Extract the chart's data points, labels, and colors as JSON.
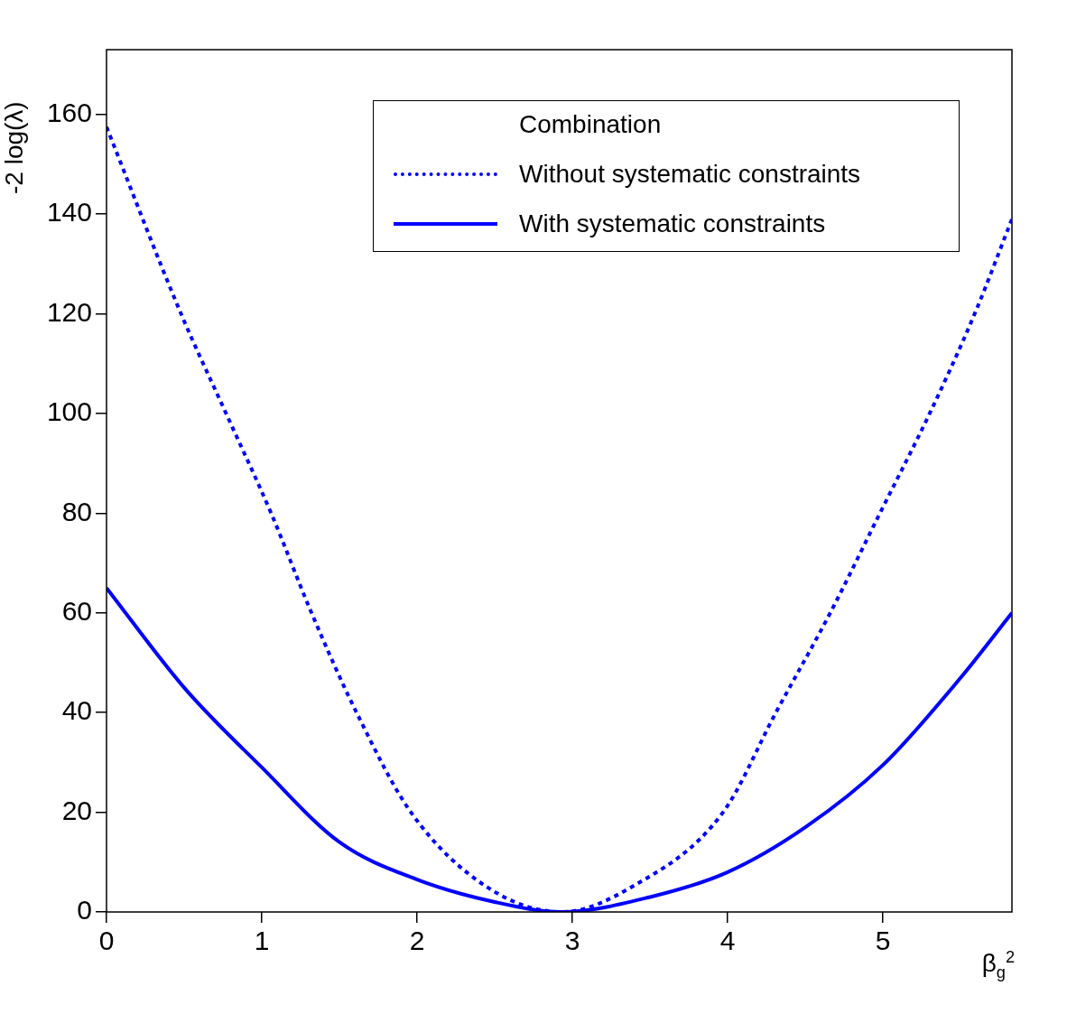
{
  "chart_data": {
    "type": "line",
    "xlabel": "β$_{g}$$^{2}$",
    "ylabel": "-2 log(λ)",
    "legend_title": "Combination",
    "legend": "top right",
    "grid": false,
    "marker": "none",
    "xlim": [
      0,
      5.83
    ],
    "xticks": [
      0,
      1,
      2,
      3,
      4,
      5
    ],
    "ylim": [
      0,
      173
    ],
    "yticks": [
      0,
      20,
      40,
      60,
      80,
      100,
      120,
      140,
      160
    ],
    "series": [
      {
        "name": "Without systematic constraints",
        "color": "#0000ff",
        "line_style": "dotted",
        "x": [
          0,
          0.48,
          0.77,
          1.06,
          1.32,
          1.61,
          1.96,
          2.45,
          2.93,
          3.38,
          3.97,
          4.31,
          4.66,
          4.98,
          5.3,
          5.59,
          5.83
        ],
        "values": [
          157.5,
          120,
          100,
          80,
          60,
          40,
          20,
          5,
          0,
          5,
          20,
          40,
          60,
          80,
          100,
          120,
          139
        ]
      },
      {
        "name": "With systematic constraints",
        "color": "#0000ff",
        "line_style": "solid",
        "x": [
          0,
          0.5,
          1,
          1.5,
          2,
          2.5,
          2.93,
          3.5,
          4,
          4.5,
          5,
          5.5,
          5.83
        ],
        "values": [
          65,
          45,
          29,
          14,
          6.5,
          2,
          0,
          3,
          8,
          17,
          29.5,
          47,
          60
        ]
      }
    ]
  }
}
